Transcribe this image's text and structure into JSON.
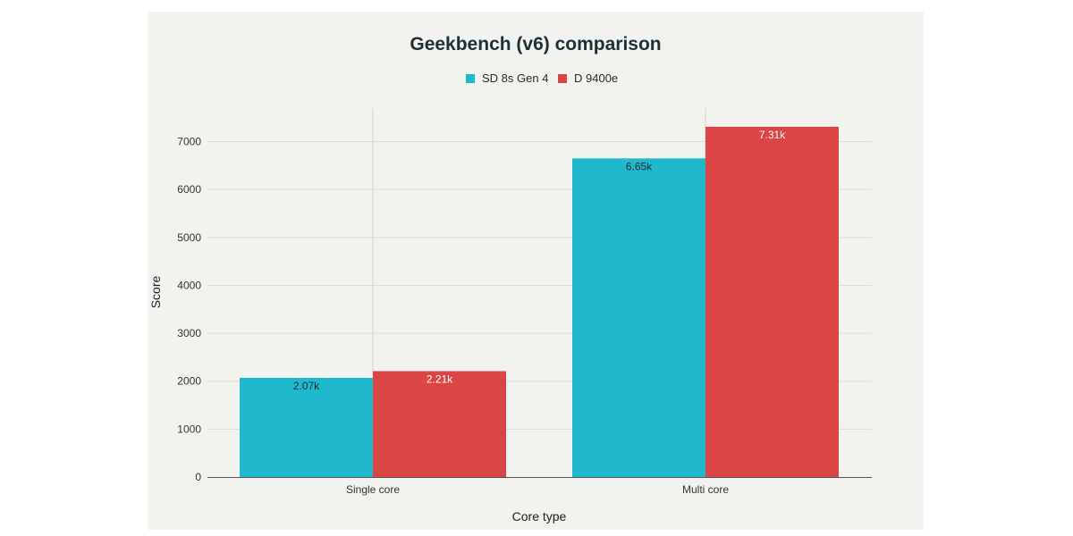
{
  "chart_data": {
    "type": "bar",
    "title": "Geekbench (v6) comparison",
    "xlabel": "Core type",
    "ylabel": "Score",
    "categories": [
      "Single core",
      "Multi core"
    ],
    "series": [
      {
        "name": "SD 8s Gen 4",
        "color": "#1fb8cd",
        "values": [
          2070,
          6650
        ],
        "labels": [
          "2.07k",
          "6.65k"
        ]
      },
      {
        "name": "D 9400e",
        "color": "#db4545",
        "values": [
          2210,
          7310
        ],
        "labels": [
          "2.21k",
          "7.31k"
        ]
      }
    ],
    "ylim": [
      0,
      7700
    ],
    "yticks": [
      0,
      1000,
      2000,
      3000,
      4000,
      5000,
      6000,
      7000
    ],
    "grid": true,
    "legend_position": "top-center"
  }
}
